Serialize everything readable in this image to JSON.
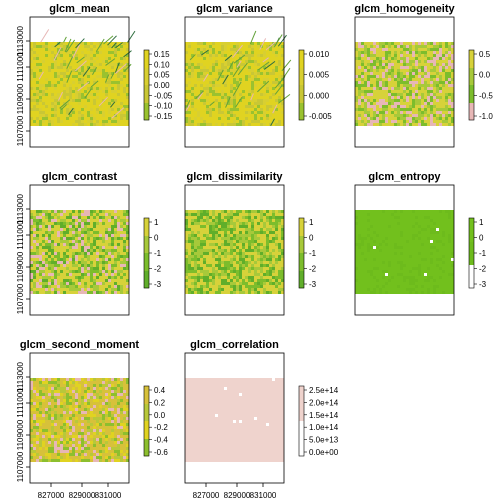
{
  "chart_data": [
    {
      "type": "heatmap",
      "title": "glcm_mean",
      "texture": "mean",
      "colors": [
        "#e0d321",
        "#d8cf31",
        "#c9c735",
        "#9ac22f",
        "#63a23a",
        "#2e6e3f",
        "#e7b7b6"
      ],
      "legend_ticks": [
        "0.15",
        "0.10",
        "0.05",
        "0.00",
        "-0.05",
        "-0.10",
        "-0.15"
      ],
      "y_ticks": [
        "1113000",
        "1111000",
        "1109000",
        "1107000"
      ],
      "x_ticks": []
    },
    {
      "type": "heatmap",
      "title": "glcm_variance",
      "texture": "mean",
      "colors": [
        "#e0d321",
        "#d8cf31",
        "#c9c735",
        "#9ac22f",
        "#63a23a",
        "#2e6e3f",
        "#e7b7b6"
      ],
      "legend_ticks": [
        "0.010",
        "0.005",
        "0.000",
        "-0.005"
      ],
      "y_ticks": [],
      "x_ticks": []
    },
    {
      "type": "heatmap",
      "title": "glcm_homogeneity",
      "texture": "speckle",
      "colors": [
        "#d7d23a",
        "#a7c93a",
        "#7cbd2c",
        "#e7b7b6"
      ],
      "legend_ticks": [
        "0.5",
        "0.0",
        "-0.5",
        "-1.0"
      ],
      "y_ticks": [],
      "x_ticks": []
    },
    {
      "type": "heatmap",
      "title": "glcm_contrast",
      "texture": "speckle",
      "colors": [
        "#d7d23a",
        "#a7c93a",
        "#7cbd2c",
        "#60ae2a",
        "#e7b7b6"
      ],
      "legend_ticks": [
        "1",
        "0",
        "-1",
        "-2",
        "-3"
      ],
      "y_ticks": [
        "1113000",
        "1111000",
        "1109000",
        "1107000"
      ],
      "x_ticks": []
    },
    {
      "type": "heatmap",
      "title": "glcm_dissimilarity",
      "texture": "speckle",
      "colors": [
        "#d7d23a",
        "#a7c93a",
        "#7cbd2c",
        "#60ae2a"
      ],
      "legend_ticks": [
        "1",
        "0",
        "-1",
        "-2",
        "-3"
      ],
      "y_ticks": [],
      "x_ticks": []
    },
    {
      "type": "heatmap",
      "title": "glcm_entropy",
      "texture": "flat",
      "colors": [
        "#72c01d",
        "#6dbb1c",
        "#ffffff"
      ],
      "legend_ticks": [
        "1",
        "0",
        "-1",
        "-2",
        "-3"
      ],
      "y_ticks": [],
      "x_ticks": []
    },
    {
      "type": "heatmap",
      "title": "glcm_second_moment",
      "texture": "speckle",
      "colors": [
        "#d7c13a",
        "#b8c83a",
        "#e0d321",
        "#8dbf2e",
        "#e7b7b6"
      ],
      "legend_ticks": [
        "0.4",
        "0.2",
        "0.0",
        "-0.2",
        "-0.4",
        "-0.6"
      ],
      "y_ticks": [
        "1113000",
        "1111000",
        "1109000",
        "1107000"
      ],
      "x_ticks": [
        "827000",
        "829000",
        "831000"
      ]
    },
    {
      "type": "heatmap",
      "title": "glcm_correlation",
      "texture": "pink",
      "colors": [
        "#efd3cd",
        "#ffffff"
      ],
      "legend_ticks": [
        "2.5e+14",
        "2.0e+14",
        "1.5e+14",
        "1.0e+14",
        "5.0e+13",
        "0.0e+00"
      ],
      "y_ticks": [],
      "x_ticks": [
        "827000",
        "829000",
        "831000"
      ]
    }
  ]
}
